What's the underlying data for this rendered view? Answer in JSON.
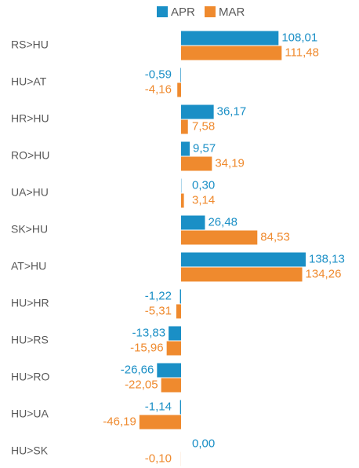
{
  "chart_data": {
    "type": "bar",
    "orientation": "horizontal",
    "categories": [
      "RS>HU",
      "HU>AT",
      "HR>HU",
      "RO>HU",
      "UA>HU",
      "SK>HU",
      "AT>HU",
      "HU>HR",
      "HU>RS",
      "HU>RO",
      "HU>UA",
      "HU>SK"
    ],
    "series": [
      {
        "name": "APR",
        "color": "#1a8fc6",
        "values": [
          108.01,
          -0.59,
          36.17,
          9.57,
          0.3,
          26.48,
          138.13,
          -1.22,
          -13.83,
          -26.66,
          -1.14,
          0.0
        ],
        "value_labels": [
          "108,01",
          "-0,59",
          "36,17",
          "9,57",
          "0,30",
          "26,48",
          "138,13",
          "-1,22",
          "-13,83",
          "-26,66",
          "-1,14",
          "0,00"
        ]
      },
      {
        "name": "MAR",
        "color": "#ef8a2e",
        "values": [
          111.48,
          -4.16,
          7.58,
          34.19,
          3.14,
          84.53,
          134.26,
          -5.31,
          -15.96,
          -22.05,
          -46.19,
          -0.1
        ],
        "value_labels": [
          "111,48",
          "-4,16",
          "7,58",
          "34,19",
          "3,14",
          "84,53",
          "134,26",
          "-5,31",
          "-15,96",
          "-22,05",
          "-46,19",
          "-0,10"
        ]
      }
    ],
    "legend": "top"
  }
}
